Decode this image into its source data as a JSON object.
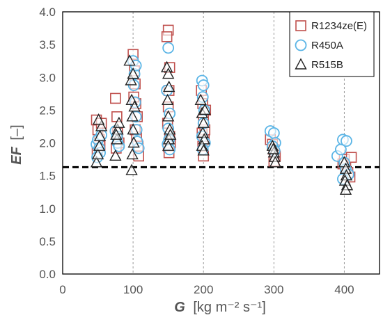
{
  "chart_data": {
    "type": "scatter",
    "title": "",
    "xlabel": {
      "symbol": "G",
      "unit": "[kg m⁻² s⁻¹]"
    },
    "ylabel": {
      "symbol": "EF",
      "unit": "[–]"
    },
    "xlim": [
      0,
      450
    ],
    "ylim": [
      0,
      4.0
    ],
    "xticks": [
      0,
      100,
      200,
      300,
      400
    ],
    "yticks": [
      0.0,
      0.5,
      1.0,
      1.5,
      2.0,
      2.5,
      3.0,
      3.5,
      4.0
    ],
    "ytick_labels": [
      "0.0",
      "0.5",
      "1.0",
      "1.5",
      "2.0",
      "2.5",
      "3.0",
      "3.5",
      "4.0"
    ],
    "xtick_labels": [
      "0",
      "100",
      "200",
      "300",
      "400"
    ],
    "vertical_grid_x": [
      100,
      200,
      300,
      400
    ],
    "reference_line_y": 1.63,
    "legend_position": "top-right",
    "series": [
      {
        "name": "R1234ze(E)",
        "marker": "square",
        "color": "#c0504d",
        "points": [
          [
            48,
            2.35
          ],
          [
            50,
            2.2
          ],
          [
            52,
            2.05
          ],
          [
            53,
            1.95
          ],
          [
            55,
            2.3
          ],
          [
            49,
            1.85
          ],
          [
            75,
            2.68
          ],
          [
            77,
            2.4
          ],
          [
            78,
            2.15
          ],
          [
            80,
            2.0
          ],
          [
            76,
            1.92
          ],
          [
            100,
            3.35
          ],
          [
            102,
            3.1
          ],
          [
            103,
            2.9
          ],
          [
            104,
            2.6
          ],
          [
            106,
            2.4
          ],
          [
            105,
            2.1
          ],
          [
            107,
            1.95
          ],
          [
            108,
            1.8
          ],
          [
            101,
            2.7
          ],
          [
            103,
            2.2
          ],
          [
            150,
            3.72
          ],
          [
            148,
            3.62
          ],
          [
            152,
            3.15
          ],
          [
            151,
            2.8
          ],
          [
            150,
            2.55
          ],
          [
            149,
            2.3
          ],
          [
            152,
            2.1
          ],
          [
            150,
            1.95
          ],
          [
            151,
            1.85
          ],
          [
            153,
            2.0
          ],
          [
            197,
            2.8
          ],
          [
            199,
            2.6
          ],
          [
            200,
            2.35
          ],
          [
            198,
            2.15
          ],
          [
            201,
            2.05
          ],
          [
            199,
            1.95
          ],
          [
            200,
            1.8
          ],
          [
            203,
            2.5
          ],
          [
            202,
            2.2
          ],
          [
            295,
            2.05
          ],
          [
            298,
            1.98
          ],
          [
            300,
            1.9
          ],
          [
            302,
            1.8
          ],
          [
            300,
            1.72
          ],
          [
            400,
            1.75
          ],
          [
            402,
            1.62
          ],
          [
            405,
            1.55
          ],
          [
            408,
            1.48
          ],
          [
            410,
            1.78
          ],
          [
            398,
            1.68
          ]
        ]
      },
      {
        "name": "R450A",
        "marker": "circle",
        "color": "#5bb5e6",
        "points": [
          [
            48,
            1.98
          ],
          [
            50,
            2.05
          ],
          [
            52,
            1.92
          ],
          [
            53,
            1.85
          ],
          [
            55,
            2.12
          ],
          [
            49,
            1.78
          ],
          [
            75,
            2.18
          ],
          [
            77,
            2.1
          ],
          [
            78,
            2.0
          ],
          [
            80,
            1.95
          ],
          [
            100,
            3.25
          ],
          [
            102,
            3.05
          ],
          [
            101,
            2.88
          ],
          [
            103,
            2.62
          ],
          [
            104,
            2.4
          ],
          [
            105,
            2.2
          ],
          [
            106,
            2.02
          ],
          [
            108,
            1.92
          ],
          [
            104,
            3.18
          ],
          [
            150,
            3.45
          ],
          [
            148,
            2.8
          ],
          [
            152,
            2.45
          ],
          [
            150,
            2.22
          ],
          [
            151,
            2.05
          ],
          [
            149,
            1.98
          ],
          [
            152,
            1.9
          ],
          [
            198,
            2.95
          ],
          [
            200,
            2.88
          ],
          [
            199,
            2.7
          ],
          [
            201,
            2.5
          ],
          [
            200,
            2.3
          ],
          [
            198,
            2.1
          ],
          [
            202,
            2.0
          ],
          [
            199,
            1.9
          ],
          [
            295,
            2.18
          ],
          [
            300,
            2.15
          ],
          [
            302,
            2.0
          ],
          [
            298,
            1.95
          ],
          [
            301,
            1.88
          ],
          [
            390,
            1.8
          ],
          [
            395,
            1.9
          ],
          [
            398,
            2.05
          ],
          [
            403,
            2.03
          ],
          [
            400,
            1.7
          ],
          [
            402,
            1.6
          ],
          [
            406,
            1.52
          ],
          [
            398,
            1.45
          ]
        ]
      },
      {
        "name": "R515B",
        "marker": "triangle",
        "color": "#222222",
        "points": [
          [
            48,
            1.7
          ],
          [
            50,
            1.82
          ],
          [
            52,
            1.95
          ],
          [
            53,
            2.1
          ],
          [
            55,
            2.25
          ],
          [
            51,
            2.35
          ],
          [
            75,
            1.8
          ],
          [
            77,
            2.05
          ],
          [
            78,
            2.2
          ],
          [
            80,
            2.3
          ],
          [
            76,
            2.12
          ],
          [
            95,
            3.25
          ],
          [
            97,
            2.95
          ],
          [
            98,
            2.65
          ],
          [
            99,
            2.4
          ],
          [
            100,
            2.2
          ],
          [
            101,
            2.0
          ],
          [
            99,
            1.82
          ],
          [
            98,
            1.58
          ],
          [
            100,
            3.05
          ],
          [
            102,
            2.55
          ],
          [
            148,
            3.15
          ],
          [
            150,
            3.05
          ],
          [
            151,
            2.85
          ],
          [
            149,
            2.65
          ],
          [
            150,
            2.4
          ],
          [
            152,
            2.2
          ],
          [
            151,
            2.05
          ],
          [
            150,
            1.95
          ],
          [
            153,
            2.12
          ],
          [
            196,
            2.65
          ],
          [
            198,
            2.45
          ],
          [
            200,
            2.3
          ],
          [
            199,
            2.15
          ],
          [
            201,
            2.05
          ],
          [
            198,
            1.95
          ],
          [
            200,
            1.88
          ],
          [
            202,
            2.5
          ],
          [
            298,
            1.95
          ],
          [
            300,
            1.85
          ],
          [
            301,
            1.78
          ],
          [
            302,
            1.7
          ],
          [
            299,
            1.9
          ],
          [
            400,
            1.7
          ],
          [
            402,
            1.6
          ],
          [
            403,
            1.5
          ],
          [
            401,
            1.42
          ],
          [
            404,
            1.35
          ],
          [
            402,
            1.28
          ]
        ]
      }
    ]
  }
}
